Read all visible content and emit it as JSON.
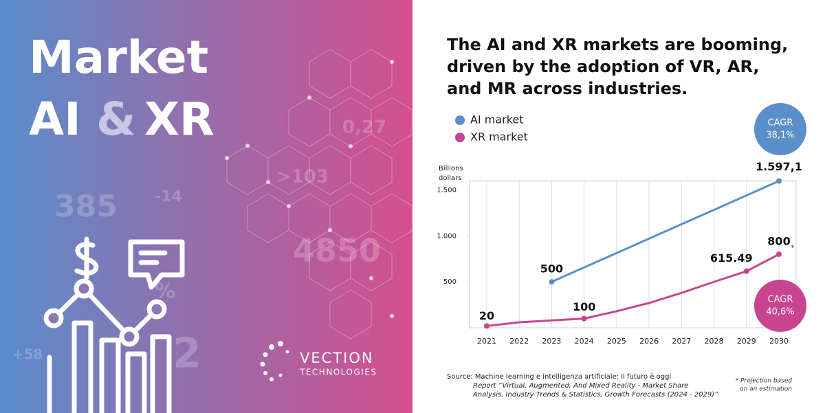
{
  "left_panel": {
    "title": [
      "Market",
      "AI",
      "&",
      "XR"
    ],
    "decorations": [
      "385",
      "-14",
      "0,27",
      ">103",
      "4850",
      "+58",
      "2",
      "%"
    ],
    "logo": {
      "name": "VECTION",
      "subtitle": "TECHNOLOGIES"
    }
  },
  "headline": [
    "The AI and XR markets are booming,",
    "driven by the adoption of VR, AR,",
    "and MR across industries."
  ],
  "chart_data": {
    "type": "line",
    "y_label": [
      "Billions",
      "dollars"
    ],
    "categories": [
      "2021",
      "2022",
      "2023",
      "2024",
      "2025",
      "2026",
      "2027",
      "2028",
      "2029",
      "2030"
    ],
    "series": [
      {
        "name": "AI market",
        "color": "#5b8fc9",
        "values": [
          null,
          null,
          500,
          657,
          813,
          970,
          1127,
          1283,
          1440,
          1597.1
        ],
        "value_labels": [
          null,
          null,
          "500",
          null,
          null,
          null,
          null,
          null,
          null,
          "1.597,1"
        ]
      },
      {
        "name": "XR market",
        "color": "#c9448f",
        "values": [
          20,
          60,
          80,
          100,
          180,
          270,
          380,
          500,
          615.49,
          800
        ],
        "value_labels": [
          "20",
          null,
          null,
          "100",
          null,
          null,
          null,
          null,
          "615.49",
          "800"
        ]
      }
    ],
    "ylim": [
      0,
      1600
    ],
    "yticks": [
      500,
      {
        "value": 1000,
        "label": "1.000"
      },
      {
        "value": 1500,
        "label": "1.500"
      }
    ],
    "grid": true,
    "annotations": [
      {
        "label": "CAGR",
        "value": "38,1%",
        "color": "#5b8fc9"
      },
      {
        "label": "CAGR",
        "value": "40,6%",
        "color": "#c9448f"
      }
    ],
    "asterisk": "*",
    "footnote": [
      "* Projection based",
      "on an estimation"
    ],
    "source": [
      "Source: Machine learning e intelligenza artificiale: il futuro è oggi",
      "Report “Virtual, Augmented, And Mixed Reality - Market Share",
      "Analysis, Industry Trends & Statistics, Growth Forecasts (2024 - 2029)”"
    ]
  }
}
